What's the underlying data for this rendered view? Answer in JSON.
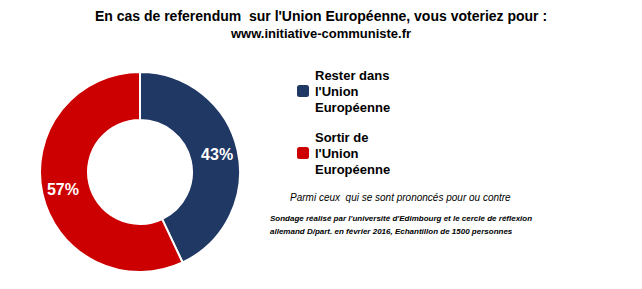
{
  "chart_data": {
    "type": "pie",
    "title": "En cas de referendum  sur l'Union Européenne, vous voteriez pour :",
    "subtitle": "www.initiative-communiste.fr",
    "categories": [
      "Rester dans\nl'Union\nEuropéenne",
      "Sortir de\nl'Union\nEuropéenne"
    ],
    "values": [
      43,
      57
    ],
    "value_labels": [
      "43%",
      "57%"
    ],
    "colors": [
      "#1f3864",
      "#cc0000"
    ],
    "data_labels": true,
    "legend": "right",
    "annotations": [
      "Parmi ceux  qui se sont prononcés pour ou contre",
      "Sondage réalisé par l'université d'Edimbourg et le cercle de réflexion",
      "allemand D/part. en février 2016, Echantillon de 1500 personnes"
    ]
  }
}
